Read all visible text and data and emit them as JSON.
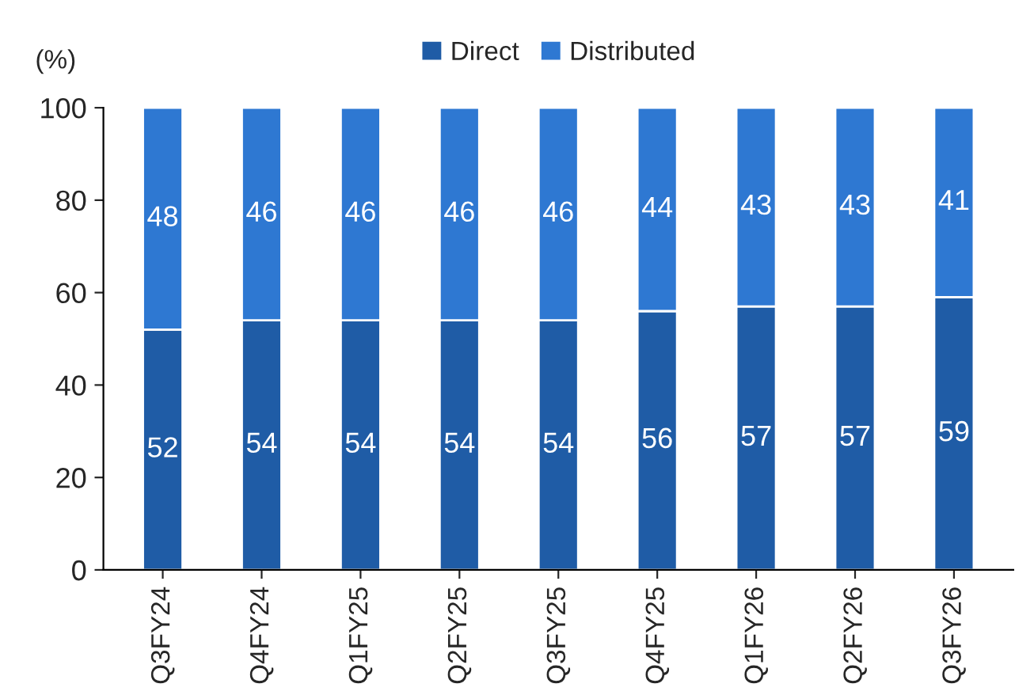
{
  "chart_data": {
    "type": "bar",
    "stacked": true,
    "ylabel": "(%)",
    "categories": [
      "Q3FY24",
      "Q4FY24",
      "Q1FY25",
      "Q2FY25",
      "Q3FY25",
      "Q4FY25",
      "Q1FY26",
      "Q2FY26",
      "Q3FY26"
    ],
    "series": [
      {
        "name": "Direct",
        "color": "#1f5ca6",
        "values": [
          52,
          54,
          54,
          54,
          54,
          56,
          57,
          57,
          59
        ]
      },
      {
        "name": "Distributed",
        "color": "#2e78d2",
        "values": [
          48,
          46,
          46,
          46,
          46,
          44,
          43,
          43,
          41
        ]
      }
    ],
    "ylim": [
      0,
      100
    ],
    "yticks": [
      0,
      20,
      40,
      60,
      80,
      100
    ],
    "data_labels": true,
    "legend": "top",
    "grid": false
  }
}
